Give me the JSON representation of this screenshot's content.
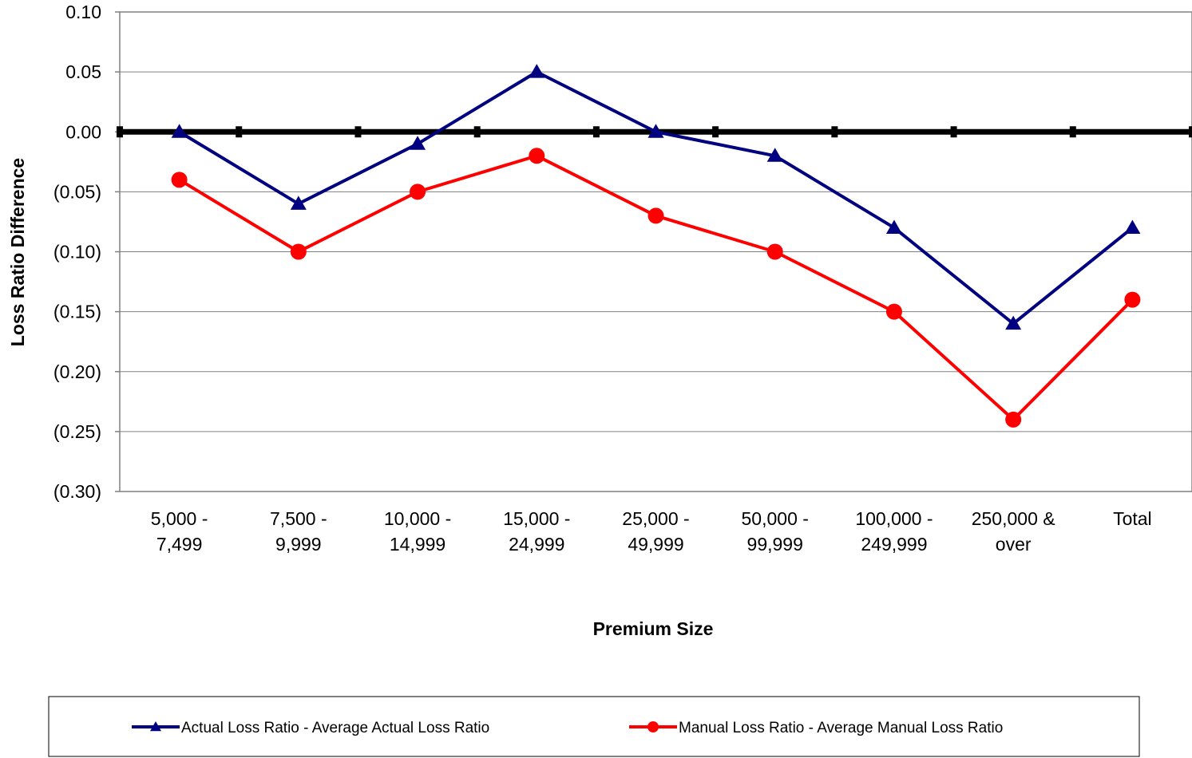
{
  "chart_data": {
    "type": "line",
    "title": "",
    "xlabel": "Premium Size",
    "ylabel": "Loss Ratio Difference",
    "ylim": [
      -0.3,
      0.1
    ],
    "y_ticks": [
      {
        "value": 0.1,
        "label": "0.10"
      },
      {
        "value": 0.05,
        "label": "0.05"
      },
      {
        "value": 0.0,
        "label": "0.00"
      },
      {
        "value": -0.05,
        "label": "(0.05)"
      },
      {
        "value": -0.1,
        "label": "(0.10)"
      },
      {
        "value": -0.15,
        "label": "(0.15)"
      },
      {
        "value": -0.2,
        "label": "(0.20)"
      },
      {
        "value": -0.25,
        "label": "(0.25)"
      },
      {
        "value": -0.3,
        "label": "(0.30)"
      }
    ],
    "grid": true,
    "categories": [
      [
        "5,000 -",
        "7,499"
      ],
      [
        "7,500 -",
        "9,999"
      ],
      [
        "10,000 -",
        "14,999"
      ],
      [
        "15,000 -",
        "24,999"
      ],
      [
        "25,000 -",
        "49,999"
      ],
      [
        "50,000 -",
        "99,999"
      ],
      [
        "100,000 -",
        "249,999"
      ],
      [
        "250,000 &",
        "over"
      ],
      [
        "Total"
      ]
    ],
    "series": [
      {
        "name": "Actual Loss Ratio - Average Actual Loss Ratio",
        "color": "#000080",
        "marker": "triangle",
        "values": [
          0.0,
          -0.06,
          -0.01,
          0.05,
          0.0,
          -0.02,
          -0.08,
          -0.16,
          -0.08
        ]
      },
      {
        "name": "Manual Loss Ratio - Average Manual Loss Ratio",
        "color": "#ff0000",
        "marker": "circle",
        "values": [
          -0.04,
          -0.1,
          -0.05,
          -0.02,
          -0.07,
          -0.1,
          -0.15,
          -0.24,
          -0.14
        ]
      }
    ],
    "reference_line": {
      "value": 0.0,
      "color": "#000000"
    },
    "legend_position": "bottom"
  }
}
